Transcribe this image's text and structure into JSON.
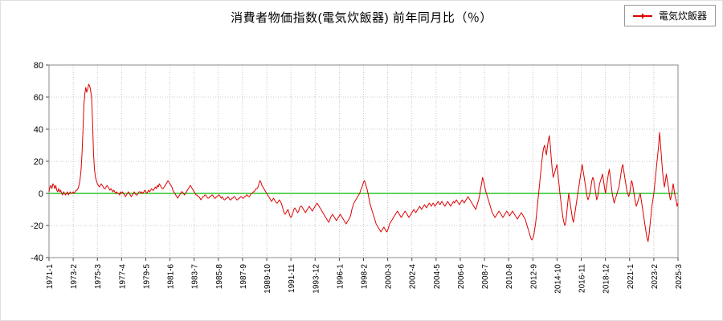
{
  "title": "消費者物価指数(電気炊飯器) 前年同月比（％）",
  "legend": {
    "label": "電気炊飯器",
    "color": "#dd0000"
  },
  "chart_data": {
    "type": "line",
    "title": "消費者物価指数(電気炊飯器) 前年同月比（％）",
    "xlabel": "",
    "ylabel": "",
    "ylim": [
      -40,
      80
    ],
    "yticks": [
      -40,
      -20,
      0,
      20,
      40,
      60,
      80
    ],
    "grid": "dotted",
    "legend_position": "top-right",
    "zero_line_color": "#00bb00",
    "x_unit": "year-month",
    "x_start": "1971-1",
    "x_end": "2025-3",
    "x_tick_interval_months": 25,
    "x_tick_labels": [
      "1971-1",
      "1973-2",
      "1975-3",
      "1977-4",
      "1979-5",
      "1981-6",
      "1983-7",
      "1985-8",
      "1987-9",
      "1989-10",
      "1991-11",
      "1993-12",
      "1996-1",
      "1998-2",
      "2000-3",
      "2002-4",
      "2004-5",
      "2006-6",
      "2008-7",
      "2010-8",
      "2012-9",
      "2014-10",
      "2016-11",
      "2018-12",
      "2021-1",
      "2023-2",
      "2025-3"
    ],
    "series": [
      {
        "name": "電気炊飯器",
        "color": "#dd0000",
        "values": [
          1,
          4,
          5,
          3,
          6,
          5,
          3,
          5,
          2,
          1,
          3,
          1,
          2,
          0,
          -1,
          1,
          0,
          -1,
          0,
          1,
          -1,
          0,
          1,
          0,
          0,
          1,
          0,
          1,
          2,
          2,
          3,
          5,
          8,
          14,
          24,
          38,
          55,
          62,
          66,
          63,
          65,
          68,
          67,
          64,
          60,
          45,
          25,
          15,
          10,
          8,
          6,
          5,
          4,
          5,
          6,
          5,
          4,
          3,
          3,
          4,
          5,
          4,
          3,
          2,
          3,
          2,
          1,
          2,
          1,
          0,
          1,
          0,
          0,
          -1,
          1,
          0,
          1,
          0,
          -1,
          -2,
          -1,
          0,
          1,
          0,
          -1,
          -2,
          -1,
          0,
          1,
          0,
          -1,
          -1,
          0,
          1,
          1,
          0,
          1,
          0,
          1,
          2,
          1,
          0,
          1,
          2,
          1,
          2,
          3,
          2,
          2,
          3,
          4,
          3,
          5,
          4,
          6,
          5,
          4,
          3,
          3,
          4,
          5,
          6,
          7,
          8,
          7,
          6,
          5,
          4,
          2,
          1,
          0,
          -1,
          -2,
          -3,
          -2,
          -1,
          0,
          1,
          1,
          0,
          -1,
          0,
          1,
          2,
          3,
          4,
          5,
          4,
          3,
          2,
          1,
          0,
          -1,
          -1,
          -2,
          -2,
          -3,
          -4,
          -3,
          -2,
          -2,
          -1,
          -1,
          -2,
          -3,
          -3,
          -2,
          -2,
          -1,
          -1,
          -2,
          -3,
          -3,
          -2,
          -2,
          -1,
          -1,
          -2,
          -3,
          -2,
          -3,
          -4,
          -4,
          -3,
          -3,
          -2,
          -3,
          -4,
          -4,
          -3,
          -3,
          -2,
          -2,
          -3,
          -4,
          -4,
          -3,
          -3,
          -2,
          -2,
          -3,
          -3,
          -2,
          -2,
          -1,
          -1,
          -2,
          -2,
          -1,
          0,
          0,
          1,
          1,
          2,
          3,
          3,
          4,
          6,
          8,
          7,
          5,
          4,
          3,
          2,
          1,
          0,
          -1,
          -2,
          -3,
          -4,
          -5,
          -4,
          -3,
          -4,
          -5,
          -6,
          -6,
          -5,
          -4,
          -5,
          -6,
          -8,
          -10,
          -12,
          -13,
          -12,
          -11,
          -10,
          -12,
          -14,
          -15,
          -14,
          -12,
          -10,
          -9,
          -10,
          -11,
          -12,
          -11,
          -9,
          -8,
          -8,
          -9,
          -10,
          -11,
          -12,
          -11,
          -10,
          -9,
          -8,
          -9,
          -10,
          -11,
          -10,
          -9,
          -8,
          -7,
          -6,
          -7,
          -8,
          -9,
          -10,
          -11,
          -12,
          -13,
          -14,
          -15,
          -16,
          -17,
          -18,
          -17,
          -15,
          -14,
          -13,
          -14,
          -15,
          -16,
          -17,
          -16,
          -15,
          -14,
          -13,
          -14,
          -15,
          -16,
          -17,
          -18,
          -19,
          -18,
          -17,
          -16,
          -15,
          -13,
          -10,
          -8,
          -6,
          -5,
          -4,
          -3,
          -2,
          -1,
          0,
          2,
          3,
          5,
          7,
          8,
          6,
          4,
          2,
          -1,
          -4,
          -7,
          -9,
          -11,
          -13,
          -15,
          -17,
          -19,
          -20,
          -21,
          -22,
          -23,
          -24,
          -23,
          -22,
          -21,
          -22,
          -23,
          -24,
          -23,
          -21,
          -19,
          -18,
          -17,
          -16,
          -15,
          -14,
          -13,
          -12,
          -11,
          -12,
          -13,
          -14,
          -15,
          -14,
          -13,
          -12,
          -11,
          -12,
          -13,
          -14,
          -15,
          -14,
          -13,
          -12,
          -11,
          -10,
          -11,
          -12,
          -11,
          -10,
          -9,
          -8,
          -9,
          -10,
          -9,
          -8,
          -7,
          -8,
          -9,
          -8,
          -7,
          -6,
          -7,
          -8,
          -7,
          -6,
          -7,
          -8,
          -7,
          -6,
          -5,
          -6,
          -7,
          -6,
          -5,
          -6,
          -7,
          -8,
          -7,
          -6,
          -5,
          -6,
          -7,
          -8,
          -7,
          -6,
          -5,
          -6,
          -5,
          -4,
          -5,
          -6,
          -7,
          -6,
          -5,
          -4,
          -5,
          -6,
          -5,
          -4,
          -3,
          -2,
          -3,
          -4,
          -5,
          -6,
          -7,
          -8,
          -9,
          -10,
          -8,
          -6,
          -4,
          -1,
          3,
          6,
          10,
          8,
          5,
          2,
          0,
          -2,
          -4,
          -6,
          -8,
          -10,
          -12,
          -13,
          -14,
          -15,
          -14,
          -13,
          -12,
          -11,
          -12,
          -13,
          -14,
          -15,
          -14,
          -13,
          -12,
          -11,
          -12,
          -13,
          -14,
          -13,
          -12,
          -11,
          -12,
          -13,
          -14,
          -15,
          -16,
          -15,
          -14,
          -13,
          -12,
          -13,
          -14,
          -15,
          -16,
          -18,
          -20,
          -22,
          -24,
          -26,
          -28,
          -29,
          -28,
          -26,
          -22,
          -18,
          -12,
          -6,
          0,
          6,
          12,
          18,
          24,
          28,
          30,
          27,
          24,
          29,
          33,
          36,
          30,
          22,
          15,
          10,
          12,
          14,
          16,
          18,
          12,
          6,
          0,
          -5,
          -10,
          -15,
          -18,
          -20,
          -18,
          -12,
          -6,
          0,
          -4,
          -8,
          -12,
          -16,
          -18,
          -14,
          -10,
          -6,
          -2,
          2,
          6,
          10,
          14,
          18,
          14,
          10,
          6,
          2,
          -2,
          -4,
          -2,
          0,
          4,
          8,
          10,
          8,
          4,
          0,
          -4,
          -2,
          2,
          6,
          8,
          10,
          12,
          8,
          4,
          0,
          4,
          8,
          12,
          15,
          10,
          5,
          0,
          -3,
          -6,
          -4,
          -2,
          0,
          2,
          4,
          8,
          12,
          16,
          18,
          14,
          10,
          6,
          2,
          0,
          -2,
          0,
          4,
          8,
          6,
          2,
          -2,
          -6,
          -8,
          -6,
          -4,
          -2,
          0,
          -4,
          -8,
          -12,
          -16,
          -20,
          -24,
          -28,
          -30,
          -26,
          -20,
          -14,
          -8,
          -4,
          0,
          6,
          12,
          18,
          24,
          30,
          38,
          30,
          22,
          14,
          8,
          4,
          8,
          12,
          8,
          4,
          0,
          -4,
          -2,
          2,
          6,
          2,
          -2,
          -4,
          -8,
          -6
        ]
      }
    ]
  }
}
